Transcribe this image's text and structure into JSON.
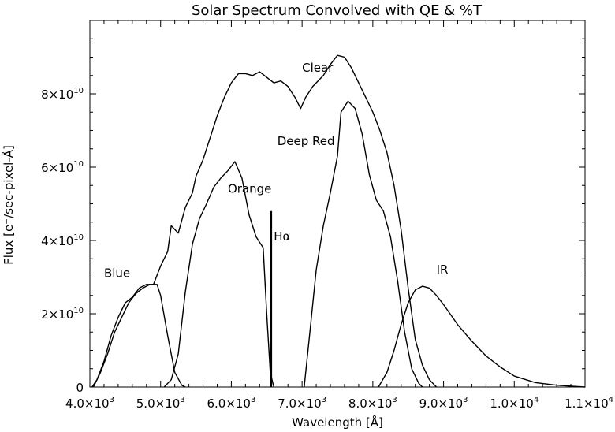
{
  "chart_data": {
    "type": "line",
    "title": "Solar Spectrum Convolved with QE & %T",
    "xlabel": "Wavelength [Å]",
    "ylabel": "Flux [e⁻/sec-pixel-Å]",
    "xlim": [
      4000,
      11000
    ],
    "ylim": [
      0,
      100000000000.0
    ],
    "x_ticks": [
      {
        "value": 4000,
        "mantissa": "4.0",
        "exp": "3"
      },
      {
        "value": 5000,
        "mantissa": "5.0",
        "exp": "3"
      },
      {
        "value": 6000,
        "mantissa": "6.0",
        "exp": "3"
      },
      {
        "value": 7000,
        "mantissa": "7.0",
        "exp": "3"
      },
      {
        "value": 8000,
        "mantissa": "8.0",
        "exp": "3"
      },
      {
        "value": 9000,
        "mantissa": "9.0",
        "exp": "3"
      },
      {
        "value": 10000,
        "mantissa": "1.0",
        "exp": "4"
      },
      {
        "value": 11000,
        "mantissa": "1.1",
        "exp": "4"
      }
    ],
    "y_ticks": [
      {
        "value": 0,
        "mantissa": "0",
        "exp": ""
      },
      {
        "value": 20000000000.0,
        "mantissa": "2",
        "exp": "10"
      },
      {
        "value": 40000000000.0,
        "mantissa": "4",
        "exp": "10"
      },
      {
        "value": 60000000000.0,
        "mantissa": "6",
        "exp": "10"
      },
      {
        "value": 80000000000.0,
        "mantissa": "8",
        "exp": "10"
      }
    ],
    "series": [
      {
        "name": "Clear",
        "label_at": [
          7000,
          86000000000.0
        ],
        "points": [
          [
            4030,
            0
          ],
          [
            4100,
            2000000000.0
          ],
          [
            4200,
            7000000000.0
          ],
          [
            4300,
            14000000000.0
          ],
          [
            4400,
            19000000000.0
          ],
          [
            4500,
            23000000000.0
          ],
          [
            4600,
            24500000000.0
          ],
          [
            4700,
            27000000000.0
          ],
          [
            4800,
            28000000000.0
          ],
          [
            4900,
            28000000000.0
          ],
          [
            5000,
            33000000000.0
          ],
          [
            5100,
            37000000000.0
          ],
          [
            5150,
            44000000000.0
          ],
          [
            5250,
            42000000000.0
          ],
          [
            5350,
            49000000000.0
          ],
          [
            5450,
            53000000000.0
          ],
          [
            5500,
            57500000000.0
          ],
          [
            5600,
            62000000000.0
          ],
          [
            5700,
            68000000000.0
          ],
          [
            5800,
            74000000000.0
          ],
          [
            5900,
            79000000000.0
          ],
          [
            6000,
            83000000000.0
          ],
          [
            6100,
            85500000000.0
          ],
          [
            6200,
            85500000000.0
          ],
          [
            6300,
            85000000000.0
          ],
          [
            6400,
            86000000000.0
          ],
          [
            6500,
            84500000000.0
          ],
          [
            6600,
            83000000000.0
          ],
          [
            6700,
            83500000000.0
          ],
          [
            6800,
            82000000000.0
          ],
          [
            6900,
            79000000000.0
          ],
          [
            6980,
            76000000000.0
          ],
          [
            7050,
            79000000000.0
          ],
          [
            7150,
            82000000000.0
          ],
          [
            7300,
            85000000000.0
          ],
          [
            7400,
            88000000000.0
          ],
          [
            7500,
            90500000000.0
          ],
          [
            7600,
            90000000000.0
          ],
          [
            7700,
            87000000000.0
          ],
          [
            7800,
            83000000000.0
          ],
          [
            7900,
            79000000000.0
          ],
          [
            8000,
            75000000000.0
          ],
          [
            8100,
            70000000000.0
          ],
          [
            8200,
            64000000000.0
          ],
          [
            8300,
            55000000000.0
          ],
          [
            8400,
            43000000000.0
          ],
          [
            8500,
            27000000000.0
          ],
          [
            8600,
            13000000000.0
          ],
          [
            8700,
            6000000000.0
          ],
          [
            8800,
            2000000000.0
          ],
          [
            8900,
            0
          ]
        ]
      },
      {
        "name": "Blue",
        "label_at": [
          4200,
          30000000000.0
        ],
        "points": [
          [
            4050,
            0
          ],
          [
            4150,
            4000000000.0
          ],
          [
            4250,
            9000000000.0
          ],
          [
            4350,
            15000000000.0
          ],
          [
            4450,
            19000000000.0
          ],
          [
            4550,
            23000000000.0
          ],
          [
            4650,
            25500000000.0
          ],
          [
            4750,
            27000000000.0
          ],
          [
            4850,
            28000000000.0
          ],
          [
            4950,
            28000000000.0
          ],
          [
            5000,
            25000000000.0
          ],
          [
            5100,
            14000000000.0
          ],
          [
            5200,
            4000000000.0
          ],
          [
            5300,
            500000000.0
          ],
          [
            5350,
            0
          ]
        ]
      },
      {
        "name": "Orange",
        "label_at": [
          5950,
          53000000000.0
        ],
        "points": [
          [
            5050,
            0
          ],
          [
            5150,
            2000000000.0
          ],
          [
            5250,
            9000000000.0
          ],
          [
            5350,
            26000000000.0
          ],
          [
            5450,
            39000000000.0
          ],
          [
            5550,
            46000000000.0
          ],
          [
            5650,
            50000000000.0
          ],
          [
            5750,
            54500000000.0
          ],
          [
            5850,
            57000000000.0
          ],
          [
            5950,
            59000000000.0
          ],
          [
            6050,
            61500000000.0
          ],
          [
            6150,
            57000000000.0
          ],
          [
            6250,
            47000000000.0
          ],
          [
            6350,
            41000000000.0
          ],
          [
            6450,
            38000000000.0
          ],
          [
            6500,
            20000000000.0
          ],
          [
            6550,
            4000000000.0
          ],
          [
            6600,
            0
          ]
        ]
      },
      {
        "name": "Deep Red",
        "label_at": [
          6650,
          66000000000.0
        ],
        "points": [
          [
            7030,
            0
          ],
          [
            7100,
            13000000000.0
          ],
          [
            7200,
            32000000000.0
          ],
          [
            7300,
            44000000000.0
          ],
          [
            7400,
            53000000000.0
          ],
          [
            7500,
            63000000000.0
          ],
          [
            7550,
            75000000000.0
          ],
          [
            7650,
            78000000000.0
          ],
          [
            7750,
            76000000000.0
          ],
          [
            7850,
            69000000000.0
          ],
          [
            7950,
            58000000000.0
          ],
          [
            8050,
            51000000000.0
          ],
          [
            8150,
            48000000000.0
          ],
          [
            8250,
            41000000000.0
          ],
          [
            8350,
            29000000000.0
          ],
          [
            8450,
            15000000000.0
          ],
          [
            8550,
            5000000000.0
          ],
          [
            8650,
            1000000000.0
          ],
          [
            8700,
            0
          ]
        ]
      },
      {
        "name": "IR",
        "label_at": [
          8900,
          31000000000.0
        ],
        "points": [
          [
            8080,
            0
          ],
          [
            8200,
            4000000000.0
          ],
          [
            8300,
            10000000000.0
          ],
          [
            8400,
            17000000000.0
          ],
          [
            8500,
            23000000000.0
          ],
          [
            8600,
            26500000000.0
          ],
          [
            8700,
            27500000000.0
          ],
          [
            8800,
            27000000000.0
          ],
          [
            8900,
            25000000000.0
          ],
          [
            9000,
            22500000000.0
          ],
          [
            9200,
            17000000000.0
          ],
          [
            9400,
            12500000000.0
          ],
          [
            9600,
            8500000000.0
          ],
          [
            9800,
            5500000000.0
          ],
          [
            10000,
            3000000000.0
          ],
          [
            10300,
            1200000000.0
          ],
          [
            10600,
            500000000.0
          ],
          [
            10900,
            100000000.0
          ],
          [
            11000,
            0
          ]
        ]
      },
      {
        "name": "Hα",
        "label_at": [
          6600,
          40000000000.0
        ],
        "points": [
          [
            6563,
            0
          ],
          [
            6563,
            48000000000.0
          ]
        ]
      }
    ]
  }
}
